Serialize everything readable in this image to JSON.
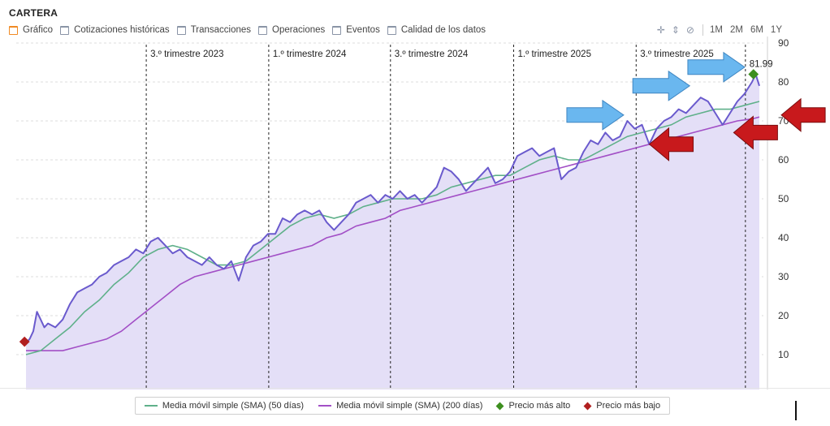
{
  "header": {
    "title": "CARTERA"
  },
  "tabs": [
    {
      "label": "Gráfico",
      "icon": "chart-icon",
      "active": true
    },
    {
      "label": "Cotizaciones históricas",
      "icon": "table-icon",
      "active": false
    },
    {
      "label": "Transacciones",
      "icon": "table-icon",
      "active": false
    },
    {
      "label": "Operaciones",
      "icon": "table-icon",
      "active": false
    },
    {
      "label": "Eventos",
      "icon": "table-icon",
      "active": false
    },
    {
      "label": "Calidad de los datos",
      "icon": "table-icon",
      "active": false
    }
  ],
  "tools": {
    "icons": [
      "crosshair-icon",
      "vertical-zoom-icon",
      "hide-icon"
    ],
    "ranges": [
      "1M",
      "2M",
      "6M",
      "1Y"
    ]
  },
  "colors": {
    "price": "#6a5acd",
    "area": "#e4dff7",
    "sma50": "#5fb08a",
    "sma200": "#a24fc6",
    "high": "#3d8f1f",
    "low": "#b11f1f",
    "blue_arrow": "#6ab7ef",
    "red_arrow": "#c8191c"
  },
  "chart_data": {
    "type": "line",
    "ylim": [
      0,
      90
    ],
    "yticks": [
      10,
      20,
      30,
      40,
      50,
      60,
      70,
      80,
      90
    ],
    "x_range": [
      0,
      100
    ],
    "periods": [
      {
        "label": "3.º trimestre 2023",
        "x": 16.4
      },
      {
        "label": "1.º trimestre 2024",
        "x": 33.1
      },
      {
        "label": "3.º trimestre 2024",
        "x": 49.7
      },
      {
        "label": "1.º trimestre 2025",
        "x": 66.5
      },
      {
        "label": "3.º trimestre 2025",
        "x": 83.2
      },
      {
        "label": "",
        "x": 98.1
      }
    ],
    "series": [
      {
        "name": "Precio",
        "points": [
          [
            0,
            13
          ],
          [
            0.5,
            14
          ],
          [
            1,
            16
          ],
          [
            1.5,
            21
          ],
          [
            2,
            19
          ],
          [
            2.5,
            17
          ],
          [
            3,
            18
          ],
          [
            4,
            17
          ],
          [
            5,
            19
          ],
          [
            6,
            23
          ],
          [
            7,
            26
          ],
          [
            8,
            27
          ],
          [
            9,
            28
          ],
          [
            10,
            30
          ],
          [
            11,
            31
          ],
          [
            12,
            33
          ],
          [
            13,
            34
          ],
          [
            14,
            35
          ],
          [
            15,
            37
          ],
          [
            16,
            36
          ],
          [
            17,
            39
          ],
          [
            18,
            40
          ],
          [
            19,
            38
          ],
          [
            20,
            36
          ],
          [
            21,
            37
          ],
          [
            22,
            35
          ],
          [
            23,
            34
          ],
          [
            24,
            33
          ],
          [
            25,
            35
          ],
          [
            26,
            33
          ],
          [
            27,
            32
          ],
          [
            28,
            34
          ],
          [
            29,
            29
          ],
          [
            30,
            35
          ],
          [
            31,
            38
          ],
          [
            32,
            39
          ],
          [
            33,
            41
          ],
          [
            34,
            41
          ],
          [
            35,
            45
          ],
          [
            36,
            44
          ],
          [
            37,
            46
          ],
          [
            38,
            47
          ],
          [
            39,
            46
          ],
          [
            40,
            47
          ],
          [
            41,
            44
          ],
          [
            42,
            42
          ],
          [
            43,
            44
          ],
          [
            44,
            46
          ],
          [
            45,
            49
          ],
          [
            46,
            50
          ],
          [
            47,
            51
          ],
          [
            48,
            49
          ],
          [
            49,
            51
          ],
          [
            50,
            50
          ],
          [
            51,
            52
          ],
          [
            52,
            50
          ],
          [
            53,
            51
          ],
          [
            54,
            49
          ],
          [
            55,
            51
          ],
          [
            56,
            53
          ],
          [
            57,
            58
          ],
          [
            58,
            57
          ],
          [
            59,
            55
          ],
          [
            60,
            52
          ],
          [
            61,
            54
          ],
          [
            62,
            56
          ],
          [
            63,
            58
          ],
          [
            64,
            54
          ],
          [
            65,
            55
          ],
          [
            66,
            57
          ],
          [
            67,
            61
          ],
          [
            68,
            62
          ],
          [
            69,
            63
          ],
          [
            70,
            61
          ],
          [
            71,
            62
          ],
          [
            72,
            63
          ],
          [
            73,
            55
          ],
          [
            74,
            57
          ],
          [
            75,
            58
          ],
          [
            76,
            62
          ],
          [
            77,
            65
          ],
          [
            78,
            64
          ],
          [
            79,
            67
          ],
          [
            80,
            65
          ],
          [
            81,
            66
          ],
          [
            82,
            70
          ],
          [
            83,
            68
          ],
          [
            84,
            69
          ],
          [
            85,
            64
          ],
          [
            86,
            68
          ],
          [
            87,
            70
          ],
          [
            88,
            71
          ],
          [
            89,
            73
          ],
          [
            90,
            72
          ],
          [
            91,
            74
          ],
          [
            92,
            76
          ],
          [
            93,
            75
          ],
          [
            94,
            72
          ],
          [
            95,
            69
          ],
          [
            96,
            72
          ],
          [
            97,
            75
          ],
          [
            98,
            77
          ],
          [
            99,
            80
          ],
          [
            99.5,
            82
          ],
          [
            100,
            79
          ]
        ]
      },
      {
        "name": "Media móvil simple (SMA) (50 días)",
        "points": [
          [
            0,
            10
          ],
          [
            2,
            11
          ],
          [
            4,
            14
          ],
          [
            6,
            17
          ],
          [
            8,
            21
          ],
          [
            10,
            24
          ],
          [
            12,
            28
          ],
          [
            14,
            31
          ],
          [
            16,
            35
          ],
          [
            18,
            37
          ],
          [
            20,
            38
          ],
          [
            22,
            37
          ],
          [
            24,
            35
          ],
          [
            26,
            33
          ],
          [
            28,
            33
          ],
          [
            30,
            34
          ],
          [
            32,
            37
          ],
          [
            34,
            40
          ],
          [
            36,
            43
          ],
          [
            38,
            45
          ],
          [
            40,
            46
          ],
          [
            42,
            45
          ],
          [
            44,
            46
          ],
          [
            46,
            48
          ],
          [
            48,
            49
          ],
          [
            50,
            50
          ],
          [
            52,
            50
          ],
          [
            54,
            50
          ],
          [
            56,
            51
          ],
          [
            58,
            53
          ],
          [
            60,
            54
          ],
          [
            62,
            55
          ],
          [
            64,
            56
          ],
          [
            66,
            56
          ],
          [
            68,
            58
          ],
          [
            70,
            60
          ],
          [
            72,
            61
          ],
          [
            74,
            60
          ],
          [
            76,
            60
          ],
          [
            78,
            62
          ],
          [
            80,
            64
          ],
          [
            82,
            66
          ],
          [
            84,
            67
          ],
          [
            86,
            68
          ],
          [
            88,
            69
          ],
          [
            90,
            71
          ],
          [
            92,
            72
          ],
          [
            94,
            73
          ],
          [
            96,
            73
          ],
          [
            98,
            74
          ],
          [
            100,
            75
          ]
        ]
      },
      {
        "name": "Media móvil simple (SMA) (200 días)",
        "points": [
          [
            0,
            11
          ],
          [
            3,
            11
          ],
          [
            5,
            11
          ],
          [
            7,
            12
          ],
          [
            9,
            13
          ],
          [
            11,
            14
          ],
          [
            13,
            16
          ],
          [
            15,
            19
          ],
          [
            17,
            22
          ],
          [
            19,
            25
          ],
          [
            21,
            28
          ],
          [
            23,
            30
          ],
          [
            25,
            31
          ],
          [
            27,
            32
          ],
          [
            29,
            33
          ],
          [
            31,
            34
          ],
          [
            33,
            35
          ],
          [
            35,
            36
          ],
          [
            37,
            37
          ],
          [
            39,
            38
          ],
          [
            41,
            40
          ],
          [
            43,
            41
          ],
          [
            45,
            43
          ],
          [
            47,
            44
          ],
          [
            49,
            45
          ],
          [
            51,
            47
          ],
          [
            53,
            48
          ],
          [
            55,
            49
          ],
          [
            57,
            50
          ],
          [
            59,
            51
          ],
          [
            61,
            52
          ],
          [
            63,
            53
          ],
          [
            65,
            54
          ],
          [
            67,
            55
          ],
          [
            69,
            56
          ],
          [
            71,
            57
          ],
          [
            73,
            58
          ],
          [
            75,
            59
          ],
          [
            77,
            60
          ],
          [
            79,
            61
          ],
          [
            81,
            62
          ],
          [
            83,
            63
          ],
          [
            85,
            64
          ],
          [
            87,
            65
          ],
          [
            89,
            66
          ],
          [
            91,
            67
          ],
          [
            93,
            68
          ],
          [
            95,
            69
          ],
          [
            97,
            70
          ],
          [
            99,
            70.5
          ],
          [
            100,
            71
          ]
        ]
      }
    ],
    "markers": [
      {
        "name": "Precio más alto",
        "x": 99.2,
        "y": 81.99,
        "label": "81.99"
      },
      {
        "name": "Precio más bajo",
        "x": -0.2,
        "y": 13.3,
        "label": ""
      }
    ],
    "annotations": [
      {
        "type": "blue-arrow",
        "x": 81.5,
        "y": 71.5
      },
      {
        "type": "blue-arrow",
        "x": 90.5,
        "y": 79
      },
      {
        "type": "blue-arrow",
        "x": 98,
        "y": 83.8
      },
      {
        "type": "red-arrow",
        "x": 85,
        "y": 64
      },
      {
        "type": "red-arrow",
        "x": 96.5,
        "y": 67
      },
      {
        "type": "red-arrow",
        "x": 103,
        "y": 71.5
      }
    ]
  },
  "legend": [
    {
      "label": "Media móvil simple (SMA) (50 días)",
      "kind": "line",
      "color": "#5fb08a"
    },
    {
      "label": "Media móvil simple (SMA) (200 días)",
      "kind": "line",
      "color": "#a24fc6"
    },
    {
      "label": "Precio más alto",
      "kind": "diamond",
      "color": "#3d8f1f"
    },
    {
      "label": "Precio más bajo",
      "kind": "diamond",
      "color": "#b11f1f"
    }
  ]
}
